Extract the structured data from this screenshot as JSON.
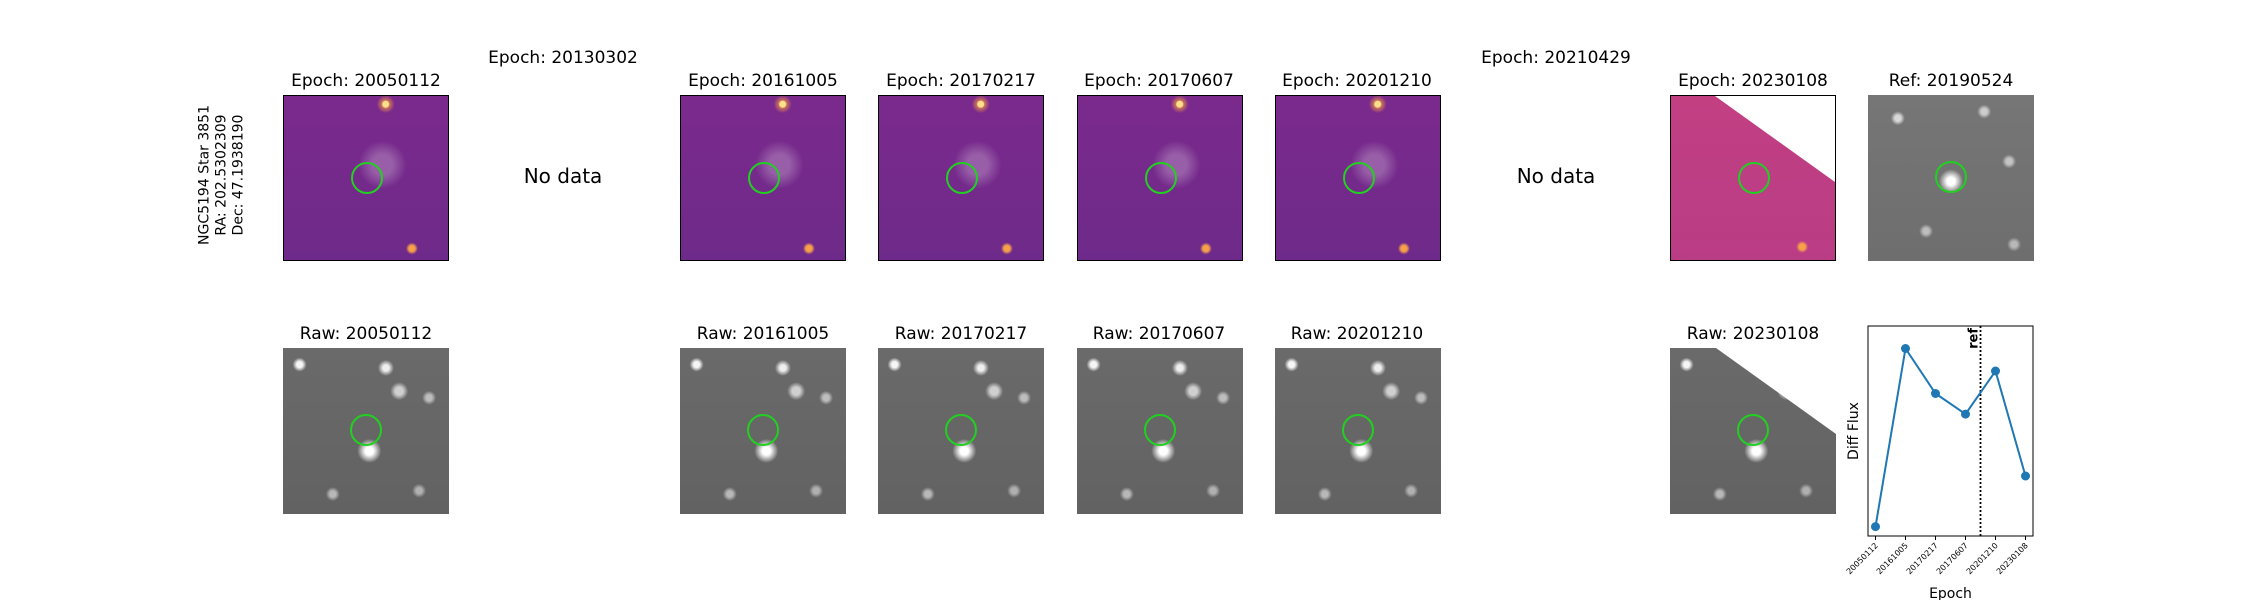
{
  "star_info": {
    "name": "NGC5194 Star 3851",
    "ra": "RA: 202.5302309",
    "dec": "Dec: 47.1938190"
  },
  "diff_titles": [
    "Epoch: 20050112",
    "Epoch: 20130302",
    "Epoch: 20161005",
    "Epoch: 20170217",
    "Epoch: 20170607",
    "Epoch: 20201210",
    "Epoch: 20210429",
    "Epoch: 20230108"
  ],
  "no_data_label": "No data",
  "ref_title": "Ref: 20190524",
  "raw_titles": [
    "Raw: 20050112",
    "Raw: 20161005",
    "Raw: 20170217",
    "Raw: 20170607",
    "Raw: 20201210",
    "Raw: 20230108"
  ],
  "chart_data": {
    "type": "line",
    "xlabel": "Epoch",
    "ylabel": "Diff Flux",
    "x": [
      "20050112",
      "20161005",
      "20170217",
      "20170607",
      "20201210",
      "20230108"
    ],
    "values": [
      0.05,
      1.0,
      0.76,
      0.65,
      0.88,
      0.32
    ],
    "ylim": [
      0,
      1.12
    ],
    "ref_label": "ref",
    "ref_position_between": [
      "20170607",
      "20201210"
    ],
    "line_color": "#1f77b4",
    "grid": false
  },
  "colors": {
    "circle": "#22d022",
    "series": "#1f77b4"
  }
}
